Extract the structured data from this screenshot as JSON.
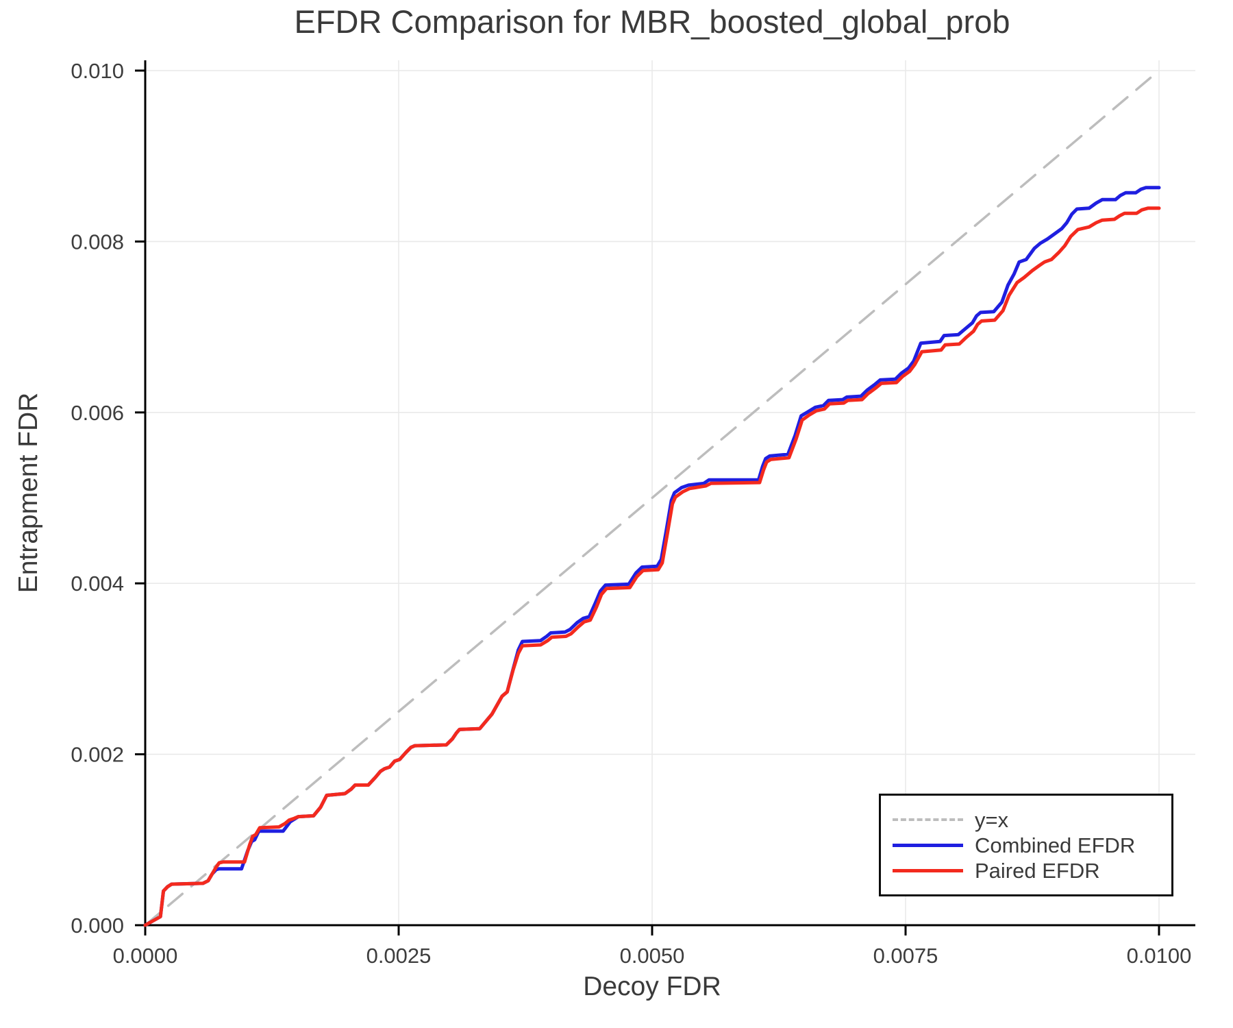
{
  "page": {
    "background": "#ffffff",
    "text_color": "#3a3a3a"
  },
  "chart_data": {
    "type": "line",
    "title": "EFDR Comparison for MBR_boosted_global_prob",
    "xlabel": "Decoy FDR",
    "ylabel": "Entrapment FDR",
    "xlim": [
      0,
      0.01035
    ],
    "ylim": [
      0,
      0.0101
    ],
    "grid": true,
    "grid_color": "#e9e9e9",
    "axis_color": "#000000",
    "tick_label_color": "#3d3d3d",
    "legend_position": "lower right",
    "xticks": {
      "values": [
        0,
        0.0025,
        0.005,
        0.0075,
        0.01
      ],
      "labels": [
        "0.0000",
        "0.0025",
        "0.0050",
        "0.0075",
        "0.0100"
      ]
    },
    "yticks": {
      "values": [
        0,
        0.002,
        0.004,
        0.006,
        0.008,
        0.01
      ],
      "labels": [
        "0.000",
        "0.002",
        "0.004",
        "0.006",
        "0.008",
        "0.010"
      ]
    },
    "series": [
      {
        "name": "y=x",
        "color": "#bdbdbd",
        "style": "dashed",
        "width": 3.5,
        "points": [
          [
            0,
            0
          ],
          [
            0.01,
            0.01
          ]
        ]
      },
      {
        "name": "Combined EFDR",
        "color": "#1f1fe0",
        "style": "solid",
        "width": 5,
        "points": [
          [
            0,
            0
          ],
          [
            0.00012,
            8e-05
          ],
          [
            0.00015,
            0.0001
          ],
          [
            0.00018,
            0.0004
          ],
          [
            0.00022,
            0.00045
          ],
          [
            0.00026,
            0.00048
          ],
          [
            0.00057,
            0.00049
          ],
          [
            0.00062,
            0.00052
          ],
          [
            0.00066,
            0.0006
          ],
          [
            0.0007,
            0.00065
          ],
          [
            0.00073,
            0.00066
          ],
          [
            0.00095,
            0.00066
          ],
          [
            0.00101,
            0.00087
          ],
          [
            0.00105,
            0.00098
          ],
          [
            0.00108,
            0.001
          ],
          [
            0.00112,
            0.0011
          ],
          [
            0.00136,
            0.0011
          ],
          [
            0.00143,
            0.00121
          ],
          [
            0.00147,
            0.00124
          ],
          [
            0.00151,
            0.00127
          ],
          [
            0.00166,
            0.00128
          ],
          [
            0.00173,
            0.00138
          ],
          [
            0.00179,
            0.00152
          ],
          [
            0.00197,
            0.00154
          ],
          [
            0.00203,
            0.00159
          ],
          [
            0.00207,
            0.00164
          ],
          [
            0.0022,
            0.00164
          ],
          [
            0.00227,
            0.00173
          ],
          [
            0.00232,
            0.0018
          ],
          [
            0.00236,
            0.00183
          ],
          [
            0.00241,
            0.00185
          ],
          [
            0.00246,
            0.00192
          ],
          [
            0.00251,
            0.00194
          ],
          [
            0.00257,
            0.00202
          ],
          [
            0.00262,
            0.00208
          ],
          [
            0.00266,
            0.0021
          ],
          [
            0.00297,
            0.00211
          ],
          [
            0.00303,
            0.00218
          ],
          [
            0.00307,
            0.00225
          ],
          [
            0.0031,
            0.00229
          ],
          [
            0.0033,
            0.0023
          ],
          [
            0.00342,
            0.00247
          ],
          [
            0.00352,
            0.00268
          ],
          [
            0.00357,
            0.00273
          ],
          [
            0.00363,
            0.003
          ],
          [
            0.00368,
            0.00322
          ],
          [
            0.00372,
            0.00332
          ],
          [
            0.0039,
            0.00333
          ],
          [
            0.00396,
            0.00338
          ],
          [
            0.004,
            0.00342
          ],
          [
            0.00414,
            0.00343
          ],
          [
            0.00419,
            0.00346
          ],
          [
            0.00426,
            0.00354
          ],
          [
            0.00432,
            0.00359
          ],
          [
            0.00438,
            0.00361
          ],
          [
            0.00444,
            0.00377
          ],
          [
            0.00449,
            0.00391
          ],
          [
            0.00454,
            0.00398
          ],
          [
            0.00477,
            0.00399
          ],
          [
            0.00484,
            0.00412
          ],
          [
            0.0049,
            0.00419
          ],
          [
            0.00505,
            0.0042
          ],
          [
            0.00509,
            0.00428
          ],
          [
            0.00514,
            0.00462
          ],
          [
            0.00519,
            0.00497
          ],
          [
            0.00522,
            0.00506
          ],
          [
            0.00529,
            0.00512
          ],
          [
            0.00536,
            0.00515
          ],
          [
            0.00551,
            0.00517
          ],
          [
            0.00556,
            0.00521
          ],
          [
            0.00605,
            0.00521
          ],
          [
            0.00609,
            0.00537
          ],
          [
            0.00612,
            0.00546
          ],
          [
            0.00616,
            0.00549
          ],
          [
            0.00634,
            0.00551
          ],
          [
            0.00641,
            0.00573
          ],
          [
            0.00647,
            0.00596
          ],
          [
            0.00654,
            0.00601
          ],
          [
            0.00661,
            0.00606
          ],
          [
            0.00669,
            0.00608
          ],
          [
            0.00674,
            0.00614
          ],
          [
            0.00688,
            0.00615
          ],
          [
            0.00692,
            0.00618
          ],
          [
            0.00706,
            0.00619
          ],
          [
            0.00712,
            0.00626
          ],
          [
            0.0072,
            0.00633
          ],
          [
            0.00725,
            0.00638
          ],
          [
            0.0074,
            0.00639
          ],
          [
            0.00746,
            0.00646
          ],
          [
            0.00753,
            0.00652
          ],
          [
            0.00758,
            0.0066
          ],
          [
            0.00765,
            0.00681
          ],
          [
            0.00784,
            0.00683
          ],
          [
            0.00788,
            0.0069
          ],
          [
            0.00802,
            0.00691
          ],
          [
            0.00809,
            0.00698
          ],
          [
            0.00816,
            0.00705
          ],
          [
            0.0082,
            0.00713
          ],
          [
            0.00824,
            0.00717
          ],
          [
            0.00837,
            0.00718
          ],
          [
            0.00845,
            0.00729
          ],
          [
            0.00851,
            0.00749
          ],
          [
            0.00857,
            0.00762
          ],
          [
            0.00862,
            0.00776
          ],
          [
            0.00869,
            0.00779
          ],
          [
            0.00877,
            0.00792
          ],
          [
            0.00883,
            0.00798
          ],
          [
            0.0089,
            0.00803
          ],
          [
            0.00897,
            0.00809
          ],
          [
            0.00904,
            0.00815
          ],
          [
            0.00909,
            0.00822
          ],
          [
            0.00914,
            0.00832
          ],
          [
            0.00919,
            0.00838
          ],
          [
            0.00931,
            0.00839
          ],
          [
            0.00938,
            0.00845
          ],
          [
            0.00944,
            0.00849
          ],
          [
            0.00957,
            0.00849
          ],
          [
            0.00962,
            0.00854
          ],
          [
            0.00967,
            0.00857
          ],
          [
            0.00977,
            0.00857
          ],
          [
            0.00982,
            0.00861
          ],
          [
            0.00987,
            0.00863
          ],
          [
            0.01,
            0.00863
          ]
        ]
      },
      {
        "name": "Paired EFDR",
        "color": "#f32a1e",
        "style": "solid",
        "width": 5,
        "points": [
          [
            0,
            0
          ],
          [
            0.00012,
            8e-05
          ],
          [
            0.00015,
            0.0001
          ],
          [
            0.00018,
            0.0004
          ],
          [
            0.00022,
            0.00045
          ],
          [
            0.00026,
            0.00048
          ],
          [
            0.00057,
            0.00049
          ],
          [
            0.00062,
            0.00052
          ],
          [
            0.00066,
            0.0006
          ],
          [
            0.0007,
            0.00068
          ],
          [
            0.00073,
            0.00073
          ],
          [
            0.00077,
            0.00074
          ],
          [
            0.00098,
            0.00074
          ],
          [
            0.00103,
            0.00094
          ],
          [
            0.00106,
            0.00104
          ],
          [
            0.00109,
            0.00106
          ],
          [
            0.00113,
            0.00114
          ],
          [
            0.00132,
            0.00115
          ],
          [
            0.00138,
            0.00119
          ],
          [
            0.00142,
            0.00123
          ],
          [
            0.00147,
            0.00125
          ],
          [
            0.00151,
            0.00127
          ],
          [
            0.00166,
            0.00128
          ],
          [
            0.00173,
            0.00138
          ],
          [
            0.00179,
            0.00152
          ],
          [
            0.00197,
            0.00154
          ],
          [
            0.00203,
            0.00159
          ],
          [
            0.00207,
            0.00164
          ],
          [
            0.0022,
            0.00164
          ],
          [
            0.00227,
            0.00173
          ],
          [
            0.00232,
            0.0018
          ],
          [
            0.00236,
            0.00183
          ],
          [
            0.00241,
            0.00185
          ],
          [
            0.00246,
            0.00192
          ],
          [
            0.00251,
            0.00194
          ],
          [
            0.00257,
            0.00202
          ],
          [
            0.00262,
            0.00208
          ],
          [
            0.00266,
            0.0021
          ],
          [
            0.00297,
            0.00211
          ],
          [
            0.00303,
            0.00218
          ],
          [
            0.00307,
            0.00225
          ],
          [
            0.0031,
            0.00229
          ],
          [
            0.0033,
            0.0023
          ],
          [
            0.00342,
            0.00247
          ],
          [
            0.00352,
            0.00268
          ],
          [
            0.00357,
            0.00273
          ],
          [
            0.00363,
            0.00299
          ],
          [
            0.00368,
            0.00318
          ],
          [
            0.00372,
            0.00327
          ],
          [
            0.0039,
            0.00328
          ],
          [
            0.00397,
            0.00333
          ],
          [
            0.00401,
            0.00337
          ],
          [
            0.00415,
            0.00338
          ],
          [
            0.0042,
            0.00341
          ],
          [
            0.00427,
            0.00349
          ],
          [
            0.00433,
            0.00355
          ],
          [
            0.00439,
            0.00357
          ],
          [
            0.00445,
            0.00372
          ],
          [
            0.0045,
            0.00387
          ],
          [
            0.00455,
            0.00394
          ],
          [
            0.00478,
            0.00395
          ],
          [
            0.00485,
            0.00408
          ],
          [
            0.00491,
            0.00415
          ],
          [
            0.00506,
            0.00416
          ],
          [
            0.0051,
            0.00424
          ],
          [
            0.00515,
            0.00458
          ],
          [
            0.0052,
            0.00493
          ],
          [
            0.00523,
            0.00501
          ],
          [
            0.0053,
            0.00507
          ],
          [
            0.00537,
            0.00511
          ],
          [
            0.00553,
            0.00514
          ],
          [
            0.00558,
            0.00517
          ],
          [
            0.00606,
            0.00518
          ],
          [
            0.0061,
            0.00533
          ],
          [
            0.00613,
            0.00542
          ],
          [
            0.00617,
            0.00545
          ],
          [
            0.00635,
            0.00547
          ],
          [
            0.00642,
            0.00569
          ],
          [
            0.00648,
            0.00591
          ],
          [
            0.00655,
            0.00597
          ],
          [
            0.00662,
            0.00602
          ],
          [
            0.0067,
            0.00604
          ],
          [
            0.00675,
            0.0061
          ],
          [
            0.00689,
            0.00611
          ],
          [
            0.00693,
            0.00614
          ],
          [
            0.00707,
            0.00615
          ],
          [
            0.00713,
            0.00622
          ],
          [
            0.00721,
            0.00629
          ],
          [
            0.00726,
            0.00634
          ],
          [
            0.00741,
            0.00635
          ],
          [
            0.00747,
            0.00642
          ],
          [
            0.00754,
            0.00648
          ],
          [
            0.00759,
            0.00656
          ],
          [
            0.00766,
            0.00671
          ],
          [
            0.00785,
            0.00673
          ],
          [
            0.00789,
            0.00679
          ],
          [
            0.00803,
            0.0068
          ],
          [
            0.0081,
            0.00688
          ],
          [
            0.00817,
            0.00695
          ],
          [
            0.00821,
            0.00703
          ],
          [
            0.00825,
            0.00707
          ],
          [
            0.00838,
            0.00708
          ],
          [
            0.00846,
            0.00719
          ],
          [
            0.00852,
            0.00737
          ],
          [
            0.0086,
            0.00752
          ],
          [
            0.00867,
            0.00758
          ],
          [
            0.00875,
            0.00766
          ],
          [
            0.00882,
            0.00772
          ],
          [
            0.00887,
            0.00776
          ],
          [
            0.00894,
            0.00779
          ],
          [
            0.00901,
            0.00787
          ],
          [
            0.00907,
            0.00795
          ],
          [
            0.00913,
            0.00806
          ],
          [
            0.0092,
            0.00814
          ],
          [
            0.00931,
            0.00817
          ],
          [
            0.00938,
            0.00822
          ],
          [
            0.00944,
            0.00825
          ],
          [
            0.00956,
            0.00826
          ],
          [
            0.00961,
            0.0083
          ],
          [
            0.00966,
            0.00833
          ],
          [
            0.00978,
            0.00833
          ],
          [
            0.00983,
            0.00837
          ],
          [
            0.00989,
            0.00839
          ],
          [
            0.01,
            0.00839
          ]
        ]
      }
    ]
  }
}
